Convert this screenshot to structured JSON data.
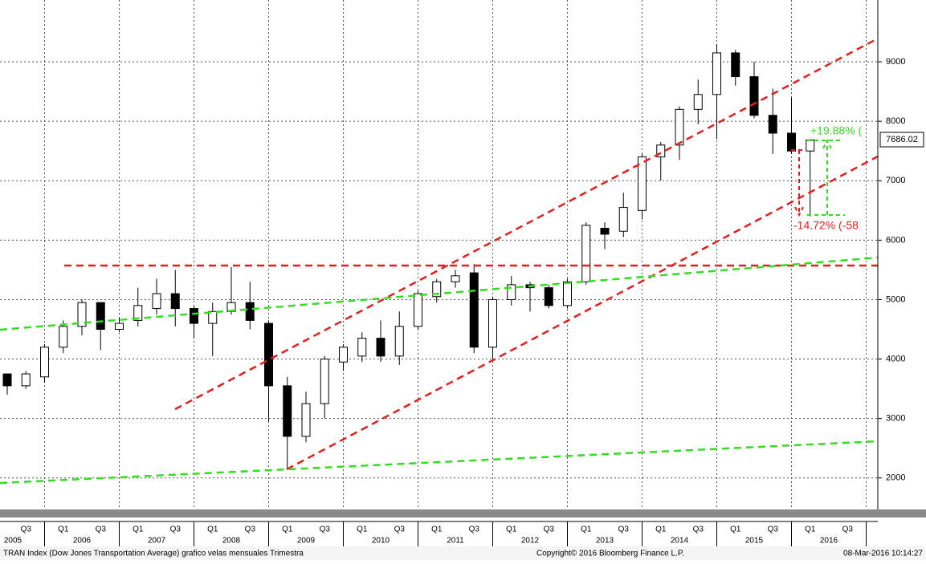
{
  "chart_data": {
    "type": "candlestick",
    "categories": [
      null,
      "Q3",
      null,
      "Q1",
      null,
      "Q3",
      null,
      "Q1",
      null,
      "Q3",
      null,
      "Q1",
      null,
      "Q3",
      null,
      "Q1",
      null,
      "Q3",
      null,
      "Q1",
      null,
      "Q3",
      null,
      "Q1",
      null,
      "Q3",
      null,
      "Q1",
      null,
      "Q3",
      null,
      "Q1",
      null,
      "Q3",
      null,
      "Q1",
      null,
      "Q3",
      null,
      "Q1",
      null,
      "Q3",
      null,
      "Q1",
      null,
      "Q3",
      null
    ],
    "years": [
      "2005",
      "2006",
      "2007",
      "2008",
      "2009",
      "2010",
      "2011",
      "2012",
      "2013",
      "2014",
      "2015",
      "2016"
    ],
    "open": [
      3750,
      3550,
      3700,
      4200,
      4550,
      4950,
      4500,
      4650,
      4850,
      5100,
      4850,
      4600,
      4800,
      4950,
      4600,
      3550,
      2700,
      3250,
      3950,
      4050,
      4350,
      4050,
      4550,
      5050,
      5300,
      5450,
      4200,
      5000,
      5250,
      5200,
      4900,
      5300,
      6200,
      6150,
      6500,
      7400,
      7600,
      8200,
      8450,
      9150,
      8750,
      8100,
      7800,
      7500,
      null,
      null,
      null
    ],
    "high": [
      3750,
      3800,
      4250,
      4650,
      5000,
      4950,
      4700,
      5200,
      5350,
      5500,
      4900,
      4950,
      5550,
      5300,
      4650,
      3700,
      3450,
      4050,
      4250,
      4450,
      4650,
      4800,
      5150,
      5350,
      5500,
      5600,
      5050,
      5400,
      5300,
      5250,
      5350,
      6300,
      6300,
      6800,
      7450,
      7650,
      8250,
      8700,
      9300,
      9200,
      9000,
      8550,
      8400,
      7700,
      null,
      null,
      null
    ],
    "low": [
      3400,
      3500,
      3600,
      4100,
      4400,
      4150,
      4450,
      4550,
      4750,
      4550,
      4350,
      4050,
      4750,
      4500,
      2950,
      2150,
      2600,
      3000,
      3800,
      3950,
      3950,
      3900,
      4500,
      4950,
      5200,
      4100,
      4000,
      4900,
      4800,
      4850,
      4850,
      5250,
      5850,
      6050,
      6350,
      7000,
      7350,
      7950,
      7700,
      8600,
      8050,
      7450,
      7450,
      6400,
      null,
      null,
      null
    ],
    "close": [
      3550,
      3750,
      4200,
      4550,
      4950,
      4500,
      4600,
      4900,
      5100,
      4850,
      4600,
      4800,
      4950,
      4650,
      3550,
      2700,
      3250,
      4000,
      4200,
      4350,
      4050,
      4550,
      5100,
      5300,
      5400,
      4200,
      5000,
      5250,
      5200,
      4900,
      5300,
      6250,
      6100,
      6550,
      7400,
      7600,
      8200,
      8450,
      9150,
      8750,
      8100,
      7800,
      7500,
      7686.02,
      null,
      null,
      null
    ],
    "ylim": [
      1470,
      10040
    ],
    "yticks": [
      2000,
      3000,
      4000,
      5000,
      6000,
      7000,
      8000,
      9000
    ],
    "grid": true,
    "up_color": "#ffffff",
    "down_color": "#000000",
    "last_price": "7686.02",
    "gain_label": "+19.88% (",
    "loss_label": "-14.72% (-58",
    "footer_left": "TRAN Index (Dow Jones Transportation Average) grafico velas mensuales  Trimestra",
    "footer_center": "Copyright© 2016 Bloomberg Finance L.P.",
    "footer_right": "08-Mar-2016 10:14:27"
  }
}
